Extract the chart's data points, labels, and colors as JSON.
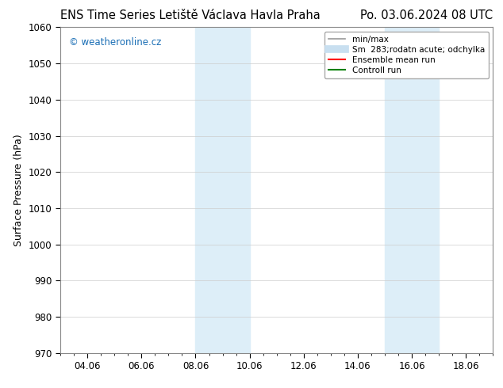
{
  "title_left": "ENS Time Series Letiště Václava Havla Praha",
  "title_right": "Po. 03.06.2024 08 UTC",
  "ylabel": "Surface Pressure (hPa)",
  "ylim": [
    970,
    1060
  ],
  "yticks": [
    970,
    980,
    990,
    1000,
    1010,
    1020,
    1030,
    1040,
    1050,
    1060
  ],
  "xlim": [
    3.0,
    19.0
  ],
  "xtick_positions": [
    4,
    6,
    8,
    10,
    12,
    14,
    16,
    18
  ],
  "xtick_labels": [
    "04.06",
    "06.06",
    "08.06",
    "10.06",
    "12.06",
    "14.06",
    "16.06",
    "18.06"
  ],
  "shaded_bands": [
    {
      "xmin": 8.0,
      "xmax": 10.0
    },
    {
      "xmin": 15.0,
      "xmax": 17.0
    }
  ],
  "shade_color": "#ddeef8",
  "watermark": "© weatheronline.cz",
  "watermark_color": "#1a6eb5",
  "legend_entries": [
    {
      "label": "min/max",
      "color": "#999999",
      "lw": 1.2,
      "style": "solid"
    },
    {
      "label": "Sm  283;rodatn acute; odchylka",
      "color": "#c8dff0",
      "lw": 7,
      "style": "solid"
    },
    {
      "label": "Ensemble mean run",
      "color": "#ff0000",
      "lw": 1.5,
      "style": "solid"
    },
    {
      "label": "Controll run",
      "color": "#008000",
      "lw": 1.5,
      "style": "solid"
    }
  ],
  "bg_color": "#ffffff",
  "grid_color": "#cccccc",
  "title_fontsize": 10.5,
  "axis_label_fontsize": 9,
  "tick_fontsize": 8.5,
  "legend_fontsize": 7.5
}
